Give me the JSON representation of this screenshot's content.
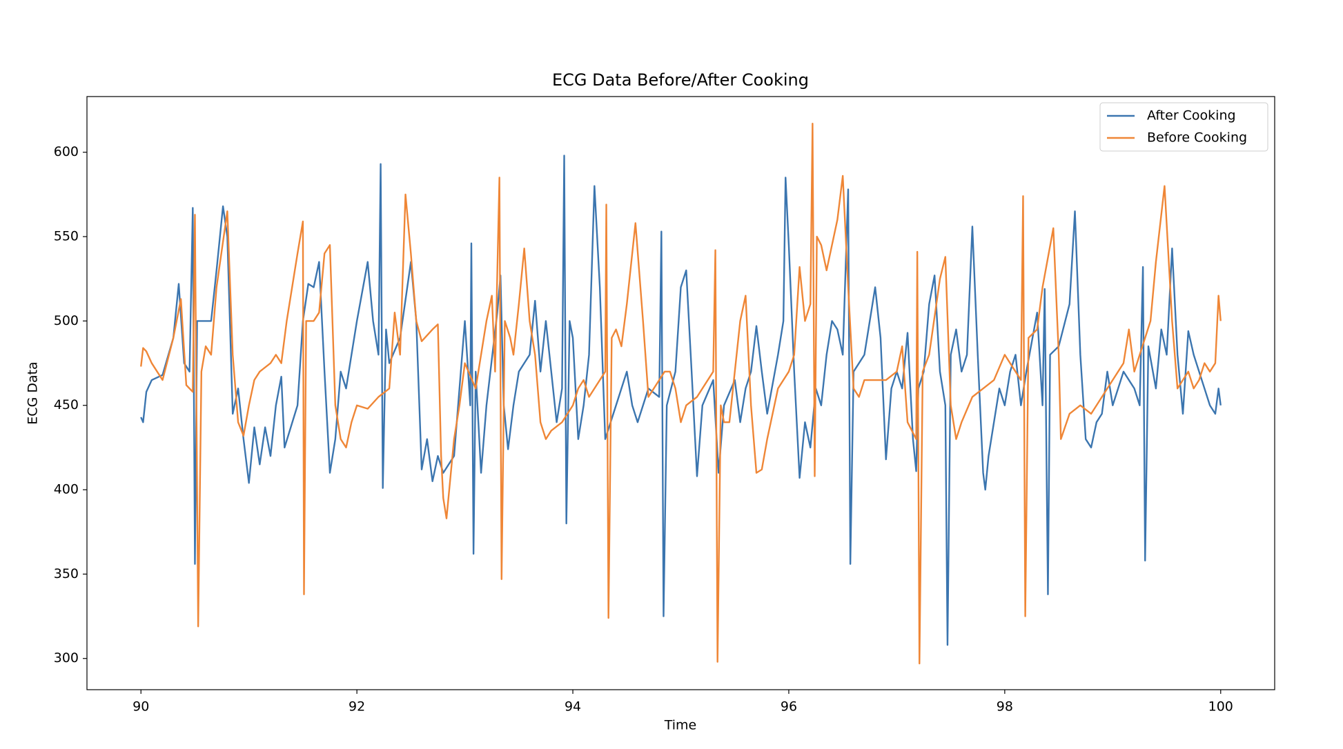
{
  "chart_data": {
    "type": "line",
    "title": "ECG Data Before/After Cooking",
    "x_label": "Time",
    "y_label": "ECG Data",
    "xlim": [
      89.5,
      100.5
    ],
    "xticks": [
      90,
      92,
      94,
      96,
      98,
      100
    ],
    "ylim": [
      281.5,
      633
    ],
    "yticks": [
      300,
      350,
      400,
      450,
      500,
      550,
      600
    ],
    "grid": false,
    "legend": "upper right",
    "series": [
      {
        "name": "After Cooking",
        "color": "#3b75af",
        "x": [
          90.0,
          90.02,
          90.05,
          90.1,
          90.2,
          90.3,
          90.35,
          90.4,
          90.45,
          90.48,
          90.5,
          90.52,
          90.6,
          90.65,
          90.7,
          90.76,
          90.8,
          90.85,
          90.9,
          90.95,
          91.0,
          91.05,
          91.1,
          91.15,
          91.2,
          91.25,
          91.3,
          91.33,
          91.45,
          91.5,
          91.55,
          91.6,
          91.65,
          91.7,
          91.75,
          91.8,
          91.85,
          91.9,
          91.95,
          92.0,
          92.1,
          92.15,
          92.2,
          92.22,
          92.24,
          92.27,
          92.3,
          92.4,
          92.5,
          92.55,
          92.6,
          92.65,
          92.7,
          92.75,
          92.8,
          92.9,
          93.0,
          93.05,
          93.06,
          93.08,
          93.1,
          93.15,
          93.2,
          93.3,
          93.33,
          93.36,
          93.4,
          93.45,
          93.5,
          93.6,
          93.65,
          93.7,
          93.75,
          93.8,
          93.85,
          93.9,
          93.92,
          93.94,
          93.97,
          94.0,
          94.05,
          94.1,
          94.15,
          94.2,
          94.25,
          94.3,
          94.4,
          94.5,
          94.55,
          94.6,
          94.7,
          94.8,
          94.82,
          94.84,
          94.87,
          94.95,
          95.0,
          95.05,
          95.1,
          95.15,
          95.2,
          95.3,
          95.35,
          95.4,
          95.5,
          95.55,
          95.6,
          95.65,
          95.7,
          95.75,
          95.8,
          95.9,
          95.95,
          95.97,
          96.0,
          96.05,
          96.1,
          96.15,
          96.2,
          96.25,
          96.3,
          96.35,
          96.4,
          96.45,
          96.5,
          96.55,
          96.57,
          96.6,
          96.7,
          96.8,
          96.85,
          96.9,
          96.95,
          97.0,
          97.05,
          97.1,
          97.15,
          97.18,
          97.2,
          97.25,
          97.3,
          97.35,
          97.4,
          97.45,
          97.47,
          97.5,
          97.55,
          97.6,
          97.65,
          97.7,
          97.75,
          97.8,
          97.82,
          97.85,
          97.9,
          97.95,
          98.0,
          98.05,
          98.1,
          98.15,
          98.2,
          98.3,
          98.35,
          98.37,
          98.4,
          98.42,
          98.5,
          98.6,
          98.65,
          98.7,
          98.75,
          98.8,
          98.85,
          98.9,
          98.95,
          99.0,
          99.1,
          99.2,
          99.25,
          99.28,
          99.3,
          99.33,
          99.4,
          99.45,
          99.5,
          99.55,
          99.6,
          99.65,
          99.7,
          99.75,
          99.8,
          99.9,
          99.95,
          99.98,
          100.0
        ],
        "values": [
          443,
          440,
          458,
          465,
          468,
          490,
          522,
          475,
          470,
          567,
          356,
          500,
          500,
          500,
          530,
          568,
          550,
          445,
          460,
          430,
          404,
          437,
          415,
          437,
          420,
          450,
          467,
          425,
          450,
          500,
          522,
          520,
          535,
          470,
          410,
          430,
          470,
          460,
          480,
          500,
          535,
          500,
          480,
          593,
          401,
          495,
          475,
          490,
          535,
          500,
          412,
          430,
          405,
          420,
          410,
          420,
          500,
          450,
          546,
          362,
          470,
          410,
          450,
          505,
          527,
          450,
          424,
          450,
          470,
          480,
          512,
          470,
          500,
          470,
          440,
          460,
          598,
          380,
          500,
          490,
          430,
          450,
          480,
          580,
          520,
          430,
          450,
          470,
          450,
          440,
          460,
          455,
          553,
          325,
          450,
          470,
          520,
          530,
          470,
          408,
          450,
          465,
          410,
          450,
          465,
          440,
          460,
          470,
          497,
          470,
          445,
          480,
          500,
          585,
          545,
          470,
          407,
          440,
          425,
          460,
          450,
          480,
          500,
          495,
          480,
          578,
          356,
          470,
          480,
          520,
          490,
          418,
          460,
          470,
          460,
          493,
          430,
          411,
          460,
          470,
          510,
          527,
          470,
          450,
          308,
          480,
          495,
          470,
          480,
          556,
          480,
          410,
          400,
          420,
          440,
          460,
          450,
          470,
          480,
          450,
          470,
          505,
          450,
          519,
          338,
          480,
          485,
          510,
          565,
          480,
          430,
          425,
          440,
          445,
          470,
          450,
          470,
          460,
          450,
          532,
          358,
          485,
          460,
          495,
          480,
          543,
          480,
          445,
          494,
          480,
          470,
          450,
          445,
          460,
          450
        ]
      },
      {
        "name": "Before Cooking",
        "color": "#ef8636",
        "x": [
          90.0,
          90.02,
          90.05,
          90.1,
          90.15,
          90.2,
          90.3,
          90.37,
          90.42,
          90.48,
          90.5,
          90.53,
          90.56,
          90.6,
          90.65,
          90.7,
          90.8,
          90.85,
          90.9,
          90.95,
          91.0,
          91.05,
          91.1,
          91.2,
          91.25,
          91.3,
          91.35,
          91.45,
          91.5,
          91.51,
          91.53,
          91.6,
          91.65,
          91.7,
          91.75,
          91.8,
          91.85,
          91.9,
          91.95,
          92.0,
          92.1,
          92.2,
          92.3,
          92.35,
          92.4,
          92.45,
          92.5,
          92.55,
          92.6,
          92.7,
          92.75,
          92.78,
          92.8,
          92.83,
          92.9,
          92.95,
          93.0,
          93.1,
          93.2,
          93.25,
          93.28,
          93.32,
          93.34,
          93.37,
          93.42,
          93.45,
          93.5,
          93.55,
          93.6,
          93.65,
          93.7,
          93.75,
          93.8,
          93.9,
          94.0,
          94.05,
          94.1,
          94.15,
          94.3,
          94.31,
          94.33,
          94.36,
          94.4,
          94.45,
          94.5,
          94.58,
          94.65,
          94.7,
          94.8,
          94.85,
          94.9,
          94.95,
          95.0,
          95.05,
          95.15,
          95.2,
          95.3,
          95.32,
          95.34,
          95.37,
          95.4,
          95.45,
          95.55,
          95.6,
          95.65,
          95.7,
          95.75,
          95.8,
          95.9,
          96.0,
          96.05,
          96.1,
          96.15,
          96.2,
          96.22,
          96.24,
          96.26,
          96.3,
          96.35,
          96.4,
          96.45,
          96.5,
          96.55,
          96.6,
          96.65,
          96.7,
          96.8,
          96.9,
          97.0,
          97.05,
          97.1,
          97.18,
          97.19,
          97.21,
          97.24,
          97.3,
          97.4,
          97.45,
          97.5,
          97.55,
          97.6,
          97.7,
          97.8,
          97.9,
          98.0,
          98.1,
          98.15,
          98.17,
          98.19,
          98.22,
          98.3,
          98.35,
          98.45,
          98.5,
          98.52,
          98.6,
          98.7,
          98.8,
          98.9,
          99.0,
          99.1,
          99.15,
          99.2,
          99.3,
          99.35,
          99.4,
          99.48,
          99.55,
          99.6,
          99.65,
          99.7,
          99.75,
          99.8,
          99.85,
          99.9,
          99.95,
          99.98,
          100.0
        ],
        "values": [
          473,
          484,
          482,
          475,
          470,
          465,
          490,
          513,
          462,
          458,
          563,
          319,
          470,
          485,
          480,
          520,
          565,
          480,
          440,
          432,
          450,
          465,
          470,
          475,
          480,
          475,
          500,
          540,
          559,
          338,
          500,
          500,
          505,
          540,
          545,
          450,
          430,
          425,
          440,
          450,
          448,
          455,
          460,
          505,
          480,
          575,
          540,
          500,
          488,
          495,
          498,
          420,
          395,
          383,
          430,
          450,
          475,
          460,
          500,
          515,
          470,
          585,
          347,
          500,
          490,
          480,
          510,
          543,
          500,
          480,
          440,
          430,
          435,
          440,
          450,
          460,
          465,
          455,
          470,
          569,
          324,
          490,
          495,
          485,
          510,
          558,
          500,
          455,
          465,
          470,
          470,
          460,
          440,
          450,
          455,
          460,
          470,
          542,
          298,
          450,
          440,
          440,
          500,
          515,
          450,
          410,
          412,
          430,
          460,
          470,
          480,
          532,
          500,
          510,
          617,
          408,
          550,
          545,
          530,
          545,
          560,
          586,
          520,
          460,
          455,
          465,
          465,
          465,
          470,
          485,
          440,
          430,
          541,
          297,
          470,
          480,
          525,
          538,
          450,
          430,
          440,
          455,
          460,
          465,
          480,
          470,
          465,
          574,
          325,
          490,
          495,
          520,
          555,
          480,
          430,
          445,
          450,
          445,
          455,
          465,
          475,
          495,
          470,
          490,
          500,
          535,
          580,
          500,
          460,
          465,
          470,
          460,
          465,
          475,
          470,
          475,
          515,
          500
        ]
      }
    ]
  }
}
